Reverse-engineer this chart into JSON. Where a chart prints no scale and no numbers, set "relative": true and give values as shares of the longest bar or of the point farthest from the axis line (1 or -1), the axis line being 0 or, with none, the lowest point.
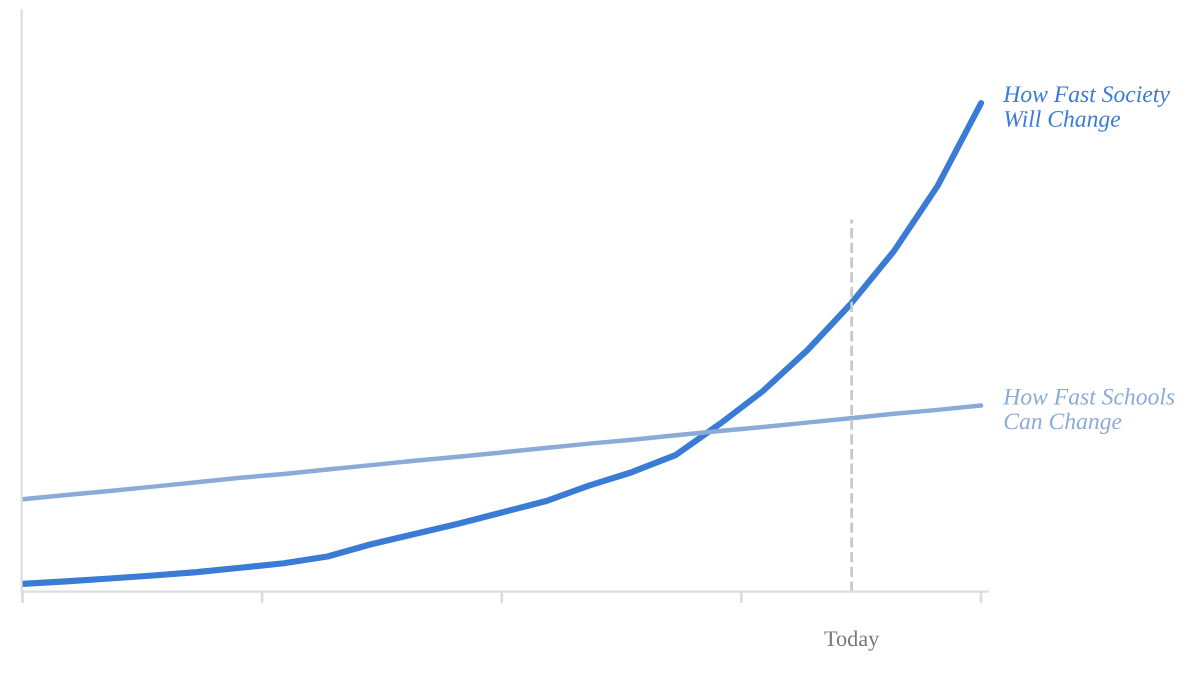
{
  "chart_data": {
    "type": "line",
    "relative": true,
    "categories": [
      null,
      null,
      null,
      null,
      null,
      null,
      null,
      null,
      null,
      null,
      null,
      null,
      null,
      null,
      null,
      null,
      null,
      null,
      null,
      null,
      null,
      null,
      null
    ],
    "series": [
      {
        "name": "How Fast Society\nWill Change",
        "color": "#3a7bd5",
        "values": [
          0.016,
          0.021,
          0.027,
          0.033,
          0.04,
          0.049,
          0.058,
          0.072,
          0.097,
          0.118,
          0.139,
          0.162,
          0.185,
          0.217,
          0.245,
          0.28,
          0.343,
          0.411,
          0.493,
          0.588,
          0.697,
          0.83,
          1.0
        ]
      },
      {
        "name": "How Fast Schools\nCan Change",
        "color": "#8aaad8",
        "values": [
          0.189,
          0.198,
          0.206,
          0.215,
          0.224,
          0.233,
          0.241,
          0.25,
          0.259,
          0.268,
          0.276,
          0.285,
          0.294,
          0.303,
          0.311,
          0.32,
          0.329,
          0.337,
          0.346,
          0.355,
          0.364,
          0.372,
          0.381
        ]
      }
    ],
    "annotations": [
      "Today"
    ],
    "grid": false,
    "legend": false,
    "marker": "none",
    "line_style": "solid"
  }
}
